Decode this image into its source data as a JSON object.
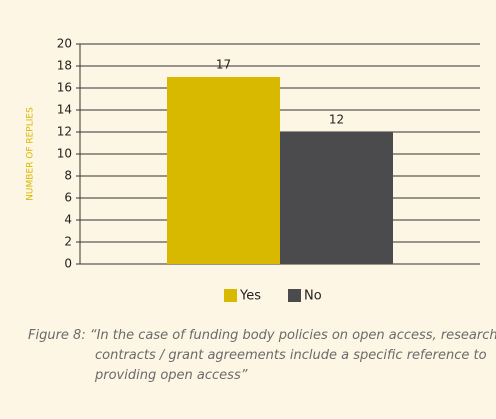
{
  "chart_data": {
    "type": "bar",
    "ylabel": "NUMBER OF REPLIES",
    "categories": [
      null
    ],
    "series": [
      {
        "name": "Yes",
        "color": "#d9b800",
        "values": [
          17
        ]
      },
      {
        "name": "No",
        "color": "#4b4b4d",
        "values": [
          12
        ]
      }
    ],
    "ylim": [
      0,
      20
    ],
    "yticks": [
      0,
      2,
      4,
      6,
      8,
      10,
      12,
      14,
      16,
      18,
      20
    ],
    "grid": true,
    "legend": "bottom",
    "caption": "Figure 8: “In the case of funding body policies on open access, research contracts / grant agreements include a specific reference to providing open access”"
  }
}
